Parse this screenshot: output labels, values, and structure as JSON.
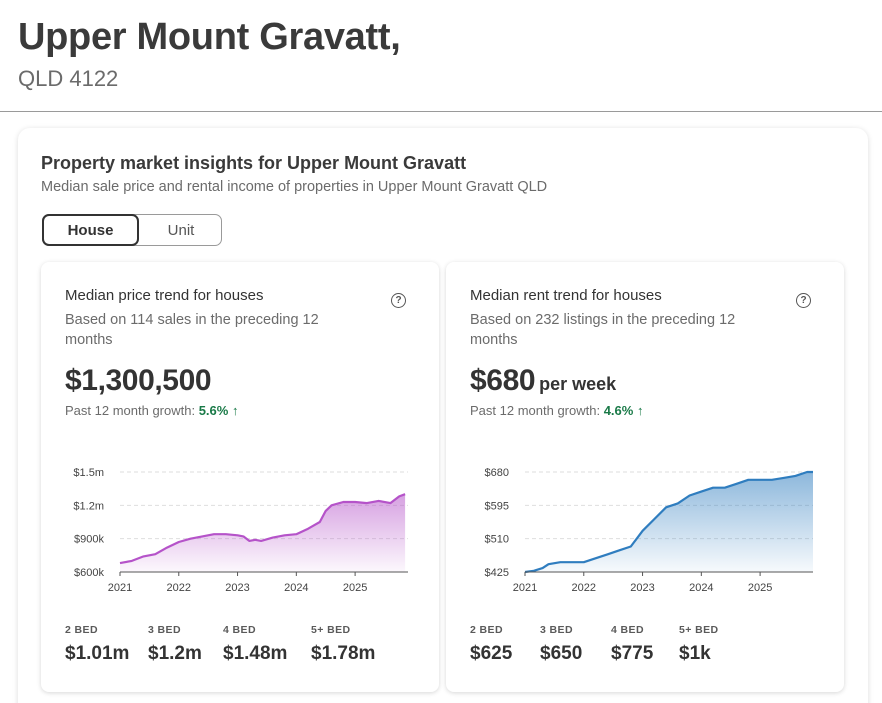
{
  "header": {
    "title": "Upper Mount Gravatt,",
    "subtitle": "QLD 4122"
  },
  "section": {
    "title": "Property market insights for Upper Mount Gravatt",
    "subtitle": "Median sale price and rental income of properties in Upper Mount Gravatt QLD",
    "toggle": {
      "house": "House",
      "unit": "Unit",
      "selected": "House"
    }
  },
  "price_card": {
    "title": "Median price trend for houses",
    "help": "?",
    "desc": "Based on 114 sales in the preceding 12 months",
    "value": "$1,300,500",
    "growth_label": "Past 12 month growth:",
    "growth_value": "5.6%",
    "growth_icon": "arrow-up-icon",
    "beds": [
      {
        "label": "2 BED",
        "value": "$1.01m"
      },
      {
        "label": "3 BED",
        "value": "$1.2m"
      },
      {
        "label": "4 BED",
        "value": "$1.48m"
      },
      {
        "label": "5+ BED",
        "value": "$1.78m"
      }
    ]
  },
  "rent_card": {
    "title": "Median rent trend for houses",
    "help": "?",
    "desc": "Based on 232 listings in the preceding 12 months",
    "value": "$680",
    "value_unit": "per week",
    "growth_label": "Past 12 month growth:",
    "growth_value": "4.6%",
    "growth_icon": "arrow-up-icon",
    "beds": [
      {
        "label": "2 BED",
        "value": "$625"
      },
      {
        "label": "3 BED",
        "value": "$650"
      },
      {
        "label": "4 BED",
        "value": "$775"
      },
      {
        "label": "5+ BED",
        "value": "$1k"
      }
    ]
  },
  "chart_data": [
    {
      "type": "area",
      "title": "Median price trend for houses",
      "x": [
        2021.0,
        2021.2,
        2021.4,
        2021.6,
        2021.8,
        2022.0,
        2022.2,
        2022.4,
        2022.6,
        2022.8,
        2023.0,
        2023.1,
        2023.2,
        2023.3,
        2023.4,
        2023.6,
        2023.8,
        2024.0,
        2024.2,
        2024.3,
        2024.4,
        2024.5,
        2024.6,
        2024.8,
        2025.0,
        2025.2,
        2025.4,
        2025.6,
        2025.75,
        2025.85
      ],
      "values": [
        680000,
        700000,
        740000,
        760000,
        820000,
        870000,
        900000,
        920000,
        940000,
        940000,
        930000,
        920000,
        880000,
        890000,
        880000,
        910000,
        930000,
        940000,
        990000,
        1020000,
        1050000,
        1150000,
        1200000,
        1230000,
        1230000,
        1220000,
        1240000,
        1220000,
        1280000,
        1300000
      ],
      "xticks": [
        "2021",
        "2022",
        "2023",
        "2024",
        "2025"
      ],
      "yticks": [
        "$600k",
        "$900k",
        "$1.2m",
        "$1.5m"
      ],
      "ytick_values": [
        600000,
        900000,
        1200000,
        1500000
      ],
      "ylim": [
        600000,
        1500000
      ],
      "xlim": [
        2021.0,
        2025.9
      ],
      "color": "#b553c9"
    },
    {
      "type": "area",
      "title": "Median rent trend for houses",
      "x": [
        2021.0,
        2021.15,
        2021.3,
        2021.4,
        2021.6,
        2021.8,
        2022.0,
        2022.2,
        2022.4,
        2022.6,
        2022.8,
        2023.0,
        2023.2,
        2023.4,
        2023.6,
        2023.8,
        2024.0,
        2024.2,
        2024.4,
        2024.6,
        2024.8,
        2025.0,
        2025.2,
        2025.4,
        2025.6,
        2025.8,
        2025.9
      ],
      "values": [
        425,
        428,
        435,
        445,
        450,
        450,
        450,
        460,
        470,
        480,
        490,
        530,
        560,
        590,
        600,
        620,
        630,
        640,
        640,
        650,
        660,
        660,
        660,
        665,
        670,
        680,
        680
      ],
      "xticks": [
        "2021",
        "2022",
        "2023",
        "2024",
        "2025"
      ],
      "yticks": [
        "$425",
        "$510",
        "$595",
        "$680"
      ],
      "ytick_values": [
        425,
        510,
        595,
        680
      ],
      "ylim": [
        425,
        680
      ],
      "xlim": [
        2021.0,
        2025.9
      ],
      "color": "#2f7dbf"
    }
  ]
}
